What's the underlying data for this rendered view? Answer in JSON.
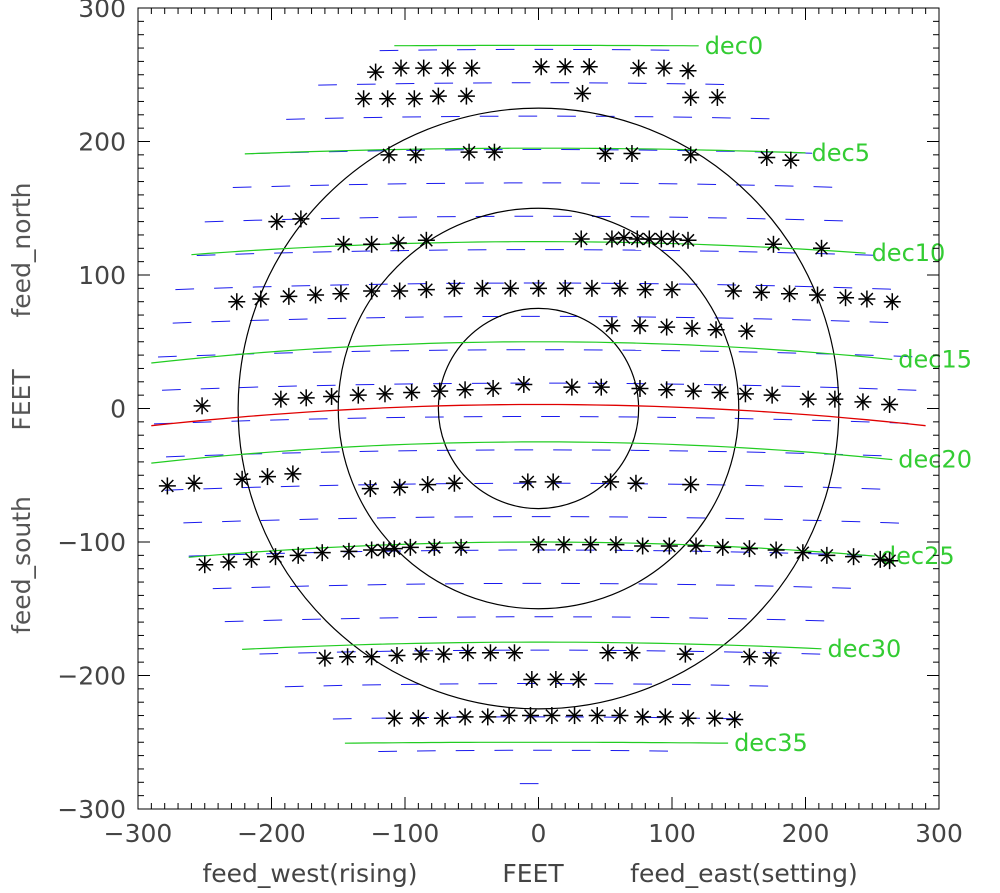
{
  "chart_data": {
    "type": "scatter",
    "xlabel": {
      "left": "feed_west(rising)",
      "center": "FEET",
      "right": "feed_east(setting)"
    },
    "ylabel": {
      "top": "feed_north",
      "center": "FEET",
      "bottom": "feed_south"
    },
    "xlim": [
      -300,
      300
    ],
    "ylim": [
      -300,
      300
    ],
    "xticks": [
      -300,
      -200,
      -100,
      0,
      100,
      200,
      300
    ],
    "yticks": [
      300,
      200,
      100,
      0,
      -100,
      -200,
      -300
    ],
    "grid": false,
    "circles": {
      "center": [
        0,
        0
      ],
      "radii": [
        75,
        150,
        225
      ]
    },
    "dec_lines": [
      {
        "label": "dec0",
        "y": 272,
        "x_range": [
          -108,
          120
        ],
        "sag": 2
      },
      {
        "label": "dec5",
        "y": 195,
        "x_range": [
          -220,
          200
        ],
        "sag": 8
      },
      {
        "label": "dec10",
        "y": 125,
        "x_range": [
          -260,
          245
        ],
        "sag": 13
      },
      {
        "label": "dec15",
        "y": 50,
        "x_range": [
          -290,
          265
        ],
        "sag": 17
      },
      {
        "label": "dec20",
        "y": -25,
        "x_range": [
          -290,
          265
        ],
        "sag": 17
      },
      {
        "label": "dec25",
        "y": -100,
        "x_range": [
          -262,
          252
        ],
        "sag": 15
      },
      {
        "label": "dec30",
        "y": -175,
        "x_range": [
          -222,
          212
        ],
        "sag": 10
      },
      {
        "label": "dec35",
        "y": -250,
        "x_range": [
          -145,
          142
        ],
        "sag": 3
      }
    ],
    "zenith_line": {
      "y": 3,
      "x_range": [
        -290,
        290
      ],
      "sag": 17,
      "color": "#e00000"
    },
    "track_rows": [
      {
        "y": 263,
        "half_width": 125
      },
      {
        "y": 238,
        "half_width": 165
      },
      {
        "y": 213,
        "half_width": 195
      },
      {
        "y": 188,
        "half_width": 215
      },
      {
        "y": 163,
        "half_width": 235
      },
      {
        "y": 138,
        "half_width": 250
      },
      {
        "y": 113,
        "half_width": 262
      },
      {
        "y": 88,
        "half_width": 272
      },
      {
        "y": 63,
        "half_width": 280
      },
      {
        "y": 38,
        "half_width": 285
      },
      {
        "y": 13,
        "half_width": 288
      },
      {
        "y": -12,
        "half_width": 288
      },
      {
        "y": -37,
        "half_width": 285
      },
      {
        "y": -62,
        "half_width": 280
      },
      {
        "y": -87,
        "half_width": 272
      },
      {
        "y": -112,
        "half_width": 262
      },
      {
        "y": -137,
        "half_width": 250
      },
      {
        "y": -162,
        "half_width": 235
      },
      {
        "y": -187,
        "half_width": 215
      },
      {
        "y": -212,
        "half_width": 190
      },
      {
        "y": -237,
        "half_width": 160
      },
      {
        "y": -262,
        "half_width": 120
      },
      {
        "y": -287,
        "half_width": 20
      }
    ],
    "series": [
      {
        "marker": "asterisk",
        "points": [
          [
            -122,
            252
          ],
          [
            -103,
            255
          ],
          [
            -86,
            255
          ],
          [
            -68,
            255
          ],
          [
            -50,
            255
          ],
          [
            2,
            256
          ],
          [
            20,
            256
          ],
          [
            38,
            256
          ],
          [
            75,
            255
          ],
          [
            94,
            255
          ],
          [
            112,
            253
          ],
          [
            -131,
            232
          ],
          [
            -113,
            232
          ],
          [
            -93,
            232
          ],
          [
            -75,
            234
          ],
          [
            -54,
            234
          ],
          [
            33,
            236
          ],
          [
            114,
            233
          ],
          [
            134,
            233
          ],
          [
            -112,
            190
          ],
          [
            -92,
            190
          ],
          [
            -52,
            192
          ],
          [
            -33,
            192
          ],
          [
            50,
            191
          ],
          [
            70,
            191
          ],
          [
            114,
            190
          ],
          [
            171,
            188
          ],
          [
            189,
            186
          ],
          [
            -196,
            140
          ],
          [
            -178,
            142
          ],
          [
            -146,
            123
          ],
          [
            -125,
            123
          ],
          [
            -105,
            124
          ],
          [
            -84,
            126
          ],
          [
            32,
            127
          ],
          [
            55,
            127
          ],
          [
            64,
            128
          ],
          [
            74,
            127
          ],
          [
            83,
            127
          ],
          [
            92,
            127
          ],
          [
            101,
            127
          ],
          [
            112,
            126
          ],
          [
            176,
            123
          ],
          [
            212,
            120
          ],
          [
            -226,
            80
          ],
          [
            -208,
            82
          ],
          [
            -187,
            84
          ],
          [
            -167,
            85
          ],
          [
            -148,
            86
          ],
          [
            -125,
            88
          ],
          [
            -104,
            88
          ],
          [
            -84,
            89
          ],
          [
            -63,
            90
          ],
          [
            -42,
            90
          ],
          [
            -21,
            90
          ],
          [
            0,
            90
          ],
          [
            20,
            90
          ],
          [
            40,
            90
          ],
          [
            61,
            90
          ],
          [
            80,
            89
          ],
          [
            100,
            89
          ],
          [
            146,
            88
          ],
          [
            167,
            87
          ],
          [
            188,
            86
          ],
          [
            209,
            85
          ],
          [
            230,
            83
          ],
          [
            246,
            82
          ],
          [
            265,
            80
          ],
          [
            55,
            62
          ],
          [
            76,
            62
          ],
          [
            96,
            61
          ],
          [
            115,
            60
          ],
          [
            133,
            59
          ],
          [
            156,
            58
          ],
          [
            -252,
            2
          ],
          [
            -193,
            7
          ],
          [
            -174,
            8
          ],
          [
            -155,
            9
          ],
          [
            -135,
            10
          ],
          [
            -115,
            11
          ],
          [
            -95,
            12
          ],
          [
            -74,
            13
          ],
          [
            -55,
            14
          ],
          [
            -34,
            15
          ],
          [
            -11,
            18
          ],
          [
            25,
            16
          ],
          [
            47,
            16
          ],
          [
            76,
            15
          ],
          [
            96,
            14
          ],
          [
            116,
            13
          ],
          [
            136,
            12
          ],
          [
            155,
            11
          ],
          [
            175,
            10
          ],
          [
            202,
            7
          ],
          [
            222,
            7
          ],
          [
            243,
            5
          ],
          [
            263,
            3
          ],
          [
            -278,
            -58
          ],
          [
            -258,
            -56
          ],
          [
            -222,
            -53
          ],
          [
            -203,
            -51
          ],
          [
            -184,
            -49
          ],
          [
            -126,
            -60
          ],
          [
            -104,
            -59
          ],
          [
            -83,
            -57
          ],
          [
            -63,
            -56
          ],
          [
            -8,
            -55
          ],
          [
            11,
            -55
          ],
          [
            54,
            -55
          ],
          [
            73,
            -56
          ],
          [
            114,
            -57
          ],
          [
            -250,
            -117
          ],
          [
            -232,
            -115
          ],
          [
            -215,
            -113
          ],
          [
            -197,
            -111
          ],
          [
            -180,
            -110
          ],
          [
            -162,
            -108
          ],
          [
            -142,
            -107
          ],
          [
            -125,
            -106
          ],
          [
            -116,
            -106
          ],
          [
            -108,
            -105
          ],
          [
            -96,
            -104
          ],
          [
            -78,
            -104
          ],
          [
            -58,
            -104
          ],
          [
            0,
            -102
          ],
          [
            19,
            -102
          ],
          [
            39,
            -102
          ],
          [
            58,
            -102
          ],
          [
            78,
            -103
          ],
          [
            98,
            -103
          ],
          [
            118,
            -103
          ],
          [
            138,
            -104
          ],
          [
            158,
            -105
          ],
          [
            178,
            -106
          ],
          [
            198,
            -108
          ],
          [
            216,
            -110
          ],
          [
            236,
            -111
          ],
          [
            256,
            -113
          ],
          [
            263,
            -114
          ],
          [
            -160,
            -187
          ],
          [
            -143,
            -186
          ],
          [
            -125,
            -186
          ],
          [
            -106,
            -185
          ],
          [
            -88,
            -184
          ],
          [
            -71,
            -184
          ],
          [
            -53,
            -183
          ],
          [
            -36,
            -183
          ],
          [
            -18,
            -183
          ],
          [
            52,
            -183
          ],
          [
            70,
            -183
          ],
          [
            110,
            -184
          ],
          [
            158,
            -186
          ],
          [
            174,
            -187
          ],
          [
            -5,
            -203
          ],
          [
            13,
            -203
          ],
          [
            30,
            -203
          ],
          [
            -108,
            -232
          ],
          [
            -90,
            -232
          ],
          [
            -72,
            -232
          ],
          [
            -55,
            -231
          ],
          [
            -38,
            -231
          ],
          [
            -22,
            -230
          ],
          [
            -6,
            -230
          ],
          [
            10,
            -230
          ],
          [
            27,
            -230
          ],
          [
            44,
            -230
          ],
          [
            61,
            -230
          ],
          [
            78,
            -231
          ],
          [
            95,
            -231
          ],
          [
            112,
            -232
          ],
          [
            132,
            -232
          ],
          [
            147,
            -233
          ]
        ]
      }
    ],
    "colors": {
      "axes": "#000000",
      "circles": "#000000",
      "dec_lines": "#22cc22",
      "dec_labels": "#33cc33",
      "tracks": "#1a1aee",
      "zenith": "#e00000",
      "ylabel_text": "#555555",
      "points": "#000000"
    }
  }
}
